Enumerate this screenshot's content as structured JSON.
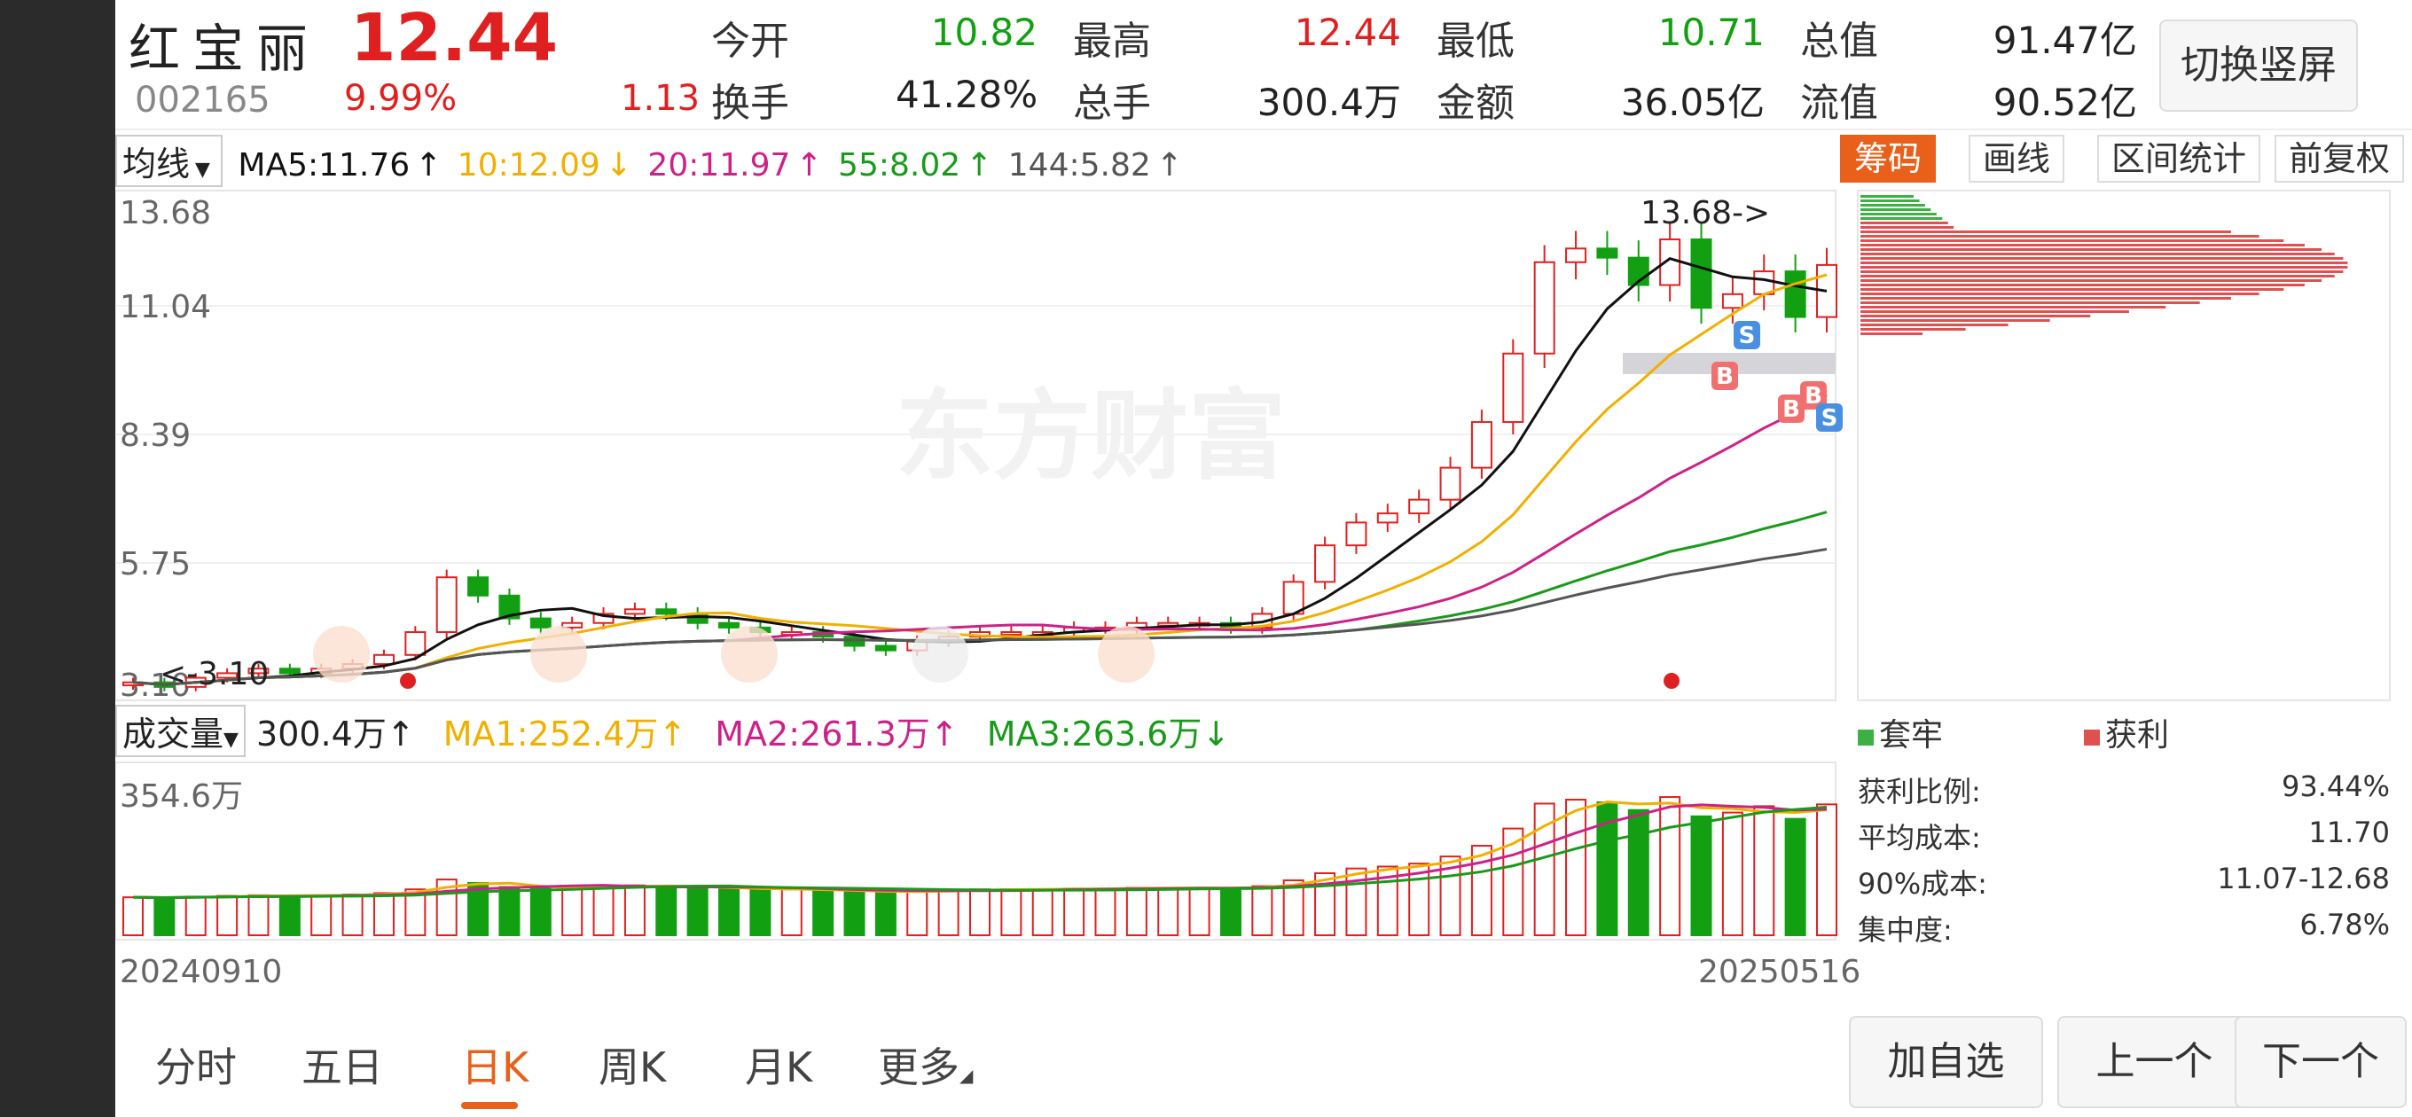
{
  "header": {
    "name": "红宝丽",
    "price": "12.44",
    "code": "002165",
    "pct": "9.99%",
    "change": "1.13",
    "quotes": [
      {
        "k": "今开",
        "v": "10.82",
        "c": "green"
      },
      {
        "k": "最高",
        "v": "12.44",
        "c": "red"
      },
      {
        "k": "最低",
        "v": "10.71",
        "c": "green"
      },
      {
        "k": "总值",
        "v": "91.47亿",
        "c": "dark"
      },
      {
        "k": "换手",
        "v": "41.28%",
        "c": "dark"
      },
      {
        "k": "总手",
        "v": "300.4万",
        "c": "dark"
      },
      {
        "k": "金额",
        "v": "36.05亿",
        "c": "dark"
      },
      {
        "k": "流值",
        "v": "90.52亿",
        "c": "dark"
      }
    ],
    "switch_label": "切换竖屏"
  },
  "ma": {
    "dropdown": "均线",
    "ma5": "MA5:11.76",
    "ma10": "10:12.09",
    "ma20": "20:11.97",
    "ma55": "55:8.02",
    "ma144": "144:5.82",
    "arrow_up": "↑",
    "arrow_down": "↓"
  },
  "side_tabs": [
    "筹码",
    "画线",
    "区间统计",
    "前复权"
  ],
  "price_axis": [
    "13.68",
    "11.04",
    "8.39",
    "5.75",
    "3.10"
  ],
  "annot": {
    "high": "13.68->",
    "low": "<-3.10",
    "watermark": "东方财富"
  },
  "volume": {
    "dropdown": "成交量",
    "vol": "300.4万",
    "ma1": "MA1:252.4万",
    "ma2": "MA2:261.3万",
    "ma3": "MA3:263.6万",
    "axis_max": "354.6万"
  },
  "dates": {
    "start": "20240910",
    "end": "20250516"
  },
  "chip": {
    "legend_loss": "套牢",
    "legend_profit": "获利",
    "stats": [
      {
        "k": "获利比例:",
        "v": "93.44%"
      },
      {
        "k": "平均成本:",
        "v": "11.70"
      },
      {
        "k": "90%成本:",
        "v": "11.07-12.68"
      },
      {
        "k": "集中度:",
        "v": "6.78%"
      }
    ]
  },
  "tabs": [
    "分时",
    "五日",
    "日K",
    "周K",
    "月K",
    "更多"
  ],
  "buttons": [
    "加自选",
    "上一个",
    "下一个"
  ],
  "colors": {
    "up": "#e02020",
    "down": "#12a012",
    "accent": "#e8601a",
    "ma5": "#111111",
    "ma10": "#f0b000",
    "ma20": "#cc2288",
    "ma55": "#1a9a1a",
    "ma144": "#555555"
  },
  "chart_data": {
    "type": "candlestick",
    "series_close_approx": [
      3.3,
      3.2,
      3.4,
      3.5,
      3.6,
      3.5,
      3.6,
      3.7,
      3.9,
      4.4,
      5.6,
      5.2,
      4.7,
      4.5,
      4.6,
      4.8,
      4.9,
      4.8,
      4.6,
      4.5,
      4.4,
      4.4,
      4.3,
      4.1,
      4.0,
      4.2,
      4.3,
      4.4,
      4.4,
      4.4,
      4.5,
      4.5,
      4.6,
      4.6,
      4.6,
      4.5,
      4.8,
      5.5,
      6.3,
      6.8,
      7.0,
      7.3,
      8.0,
      9.0,
      10.5,
      12.5,
      12.8,
      12.6,
      12.0,
      13.0,
      11.5,
      11.8,
      12.3,
      11.3,
      12.44
    ],
    "ylim": [
      3.1,
      13.68
    ],
    "high": 13.68,
    "low": 3.1
  }
}
